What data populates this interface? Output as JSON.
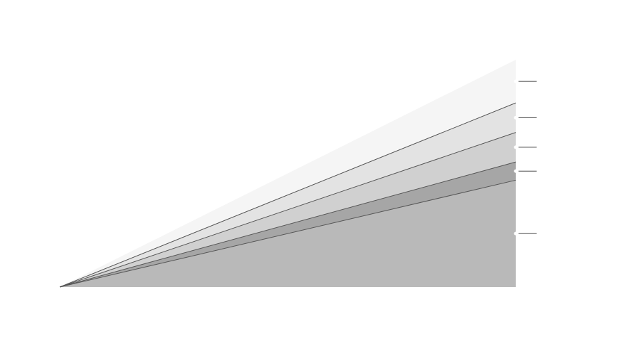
{
  "chart_data": {
    "type": "area",
    "stacked": true,
    "title": "",
    "xlabel": "",
    "ylabel": "",
    "x": [
      0,
      1
    ],
    "ylim": [
      0,
      100
    ],
    "grid": false,
    "legend": "none",
    "series": [
      {
        "values": [
          0,
          47
        ],
        "color": "#b9b9b9"
      },
      {
        "values": [
          0,
          8
        ],
        "color": "#a6a6a6"
      },
      {
        "values": [
          0,
          13
        ],
        "color": "#d0d0d0"
      },
      {
        "values": [
          0,
          13
        ],
        "color": "#e3e3e3"
      },
      {
        "values": [
          0,
          19
        ],
        "color": "#f5f5f5"
      }
    ],
    "boundary_lines": {
      "color": "#555555"
    },
    "end_markers": {
      "color": "#ffffff",
      "leader_color": "#444444"
    }
  }
}
